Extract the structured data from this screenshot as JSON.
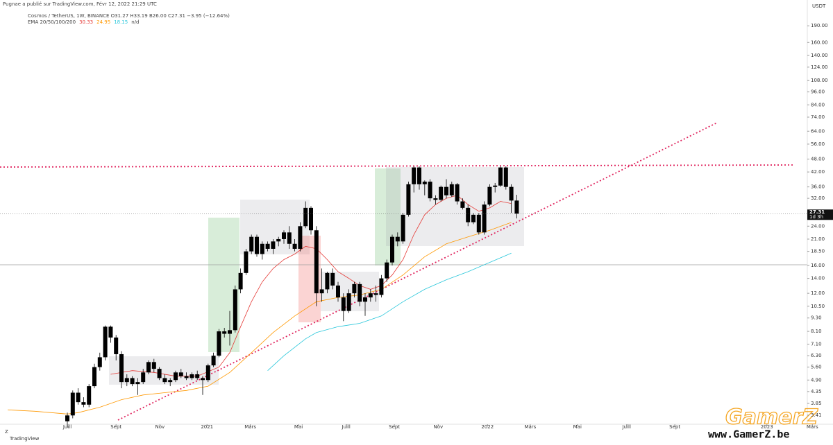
{
  "published": "Pugnae a publié sur TradingView.com, Févr 12, 2022 21:29 UTC",
  "symbol_line": "Cosmos / TetherUS, 1W, BINANCE  O31.27  H33.19  B26.00  C27.31  −3.95 (−12.64%)",
  "indicator_label": "EMA 20/50/100/200",
  "indicator_readout": [
    {
      "label": "30.33",
      "color": "#e53935"
    },
    {
      "label": "24.95",
      "color": "#ff9800"
    },
    {
      "label": "18.15",
      "color": "#26c6da"
    },
    {
      "label": "n/d",
      "color": "#444444"
    }
  ],
  "watermark": {
    "title": "GamerZ",
    "url": "www.GamerZ.be"
  },
  "footer": "TradingView",
  "chart_data": {
    "type": "candlestick",
    "unit": "USDT",
    "log_scale": true,
    "color": "#000000",
    "ylim": [
      3.15,
      203
    ],
    "yticks": [
      {
        "value": 190,
        "label": "190.00"
      },
      {
        "value": 160,
        "label": "160.00"
      },
      {
        "value": 140,
        "label": "140.00"
      },
      {
        "value": 124,
        "label": "124.00"
      },
      {
        "value": 108,
        "label": "108.00"
      },
      {
        "value": 96,
        "label": "96.00"
      },
      {
        "value": 84,
        "label": "84.00"
      },
      {
        "value": 74,
        "label": "74.00"
      },
      {
        "value": 64,
        "label": "64.00"
      },
      {
        "value": 56,
        "label": "56.00"
      },
      {
        "value": 48,
        "label": "48.00"
      },
      {
        "value": 42,
        "label": "42.00"
      },
      {
        "value": 36,
        "label": "36.00"
      },
      {
        "value": 32,
        "label": "32.00"
      },
      {
        "value": 24,
        "label": "24.00"
      },
      {
        "value": 21,
        "label": "21.00"
      },
      {
        "value": 18.5,
        "label": "18.50"
      },
      {
        "value": 16,
        "label": "16.00"
      },
      {
        "value": 14,
        "label": "14.00"
      },
      {
        "value": 12,
        "label": "12.00"
      },
      {
        "value": 10.5,
        "label": "10.50"
      },
      {
        "value": 9.3,
        "label": "9.30"
      },
      {
        "value": 8.1,
        "label": "8.10"
      },
      {
        "value": 7.1,
        "label": "7.10"
      },
      {
        "value": 6.3,
        "label": "6.30"
      },
      {
        "value": 5.6,
        "label": "5.60"
      },
      {
        "value": 4.9,
        "label": "4.90"
      },
      {
        "value": 4.35,
        "label": "4.35"
      },
      {
        "value": 3.85,
        "label": "3.85"
      },
      {
        "value": 3.41,
        "label": "3.41"
      }
    ],
    "xticks": [
      {
        "value": 0,
        "label": "Juill"
      },
      {
        "value": 9,
        "label": "Sept"
      },
      {
        "value": 17.1,
        "label": "Nov"
      },
      {
        "value": 25.8,
        "label": "2021"
      },
      {
        "value": 33.8,
        "label": "Mars"
      },
      {
        "value": 42.7,
        "label": "Mai"
      },
      {
        "value": 51.5,
        "label": "Juill"
      },
      {
        "value": 60.4,
        "label": "Sept"
      },
      {
        "value": 68.5,
        "label": "Nov"
      },
      {
        "value": 77.6,
        "label": "2022"
      },
      {
        "value": 85.5,
        "label": "Mars"
      },
      {
        "value": 94.2,
        "label": "Mai"
      },
      {
        "value": 103.3,
        "label": "Juill"
      },
      {
        "value": 112.2,
        "label": "Sept"
      },
      {
        "value": 129.2,
        "label": "2023"
      },
      {
        "value": 137.6,
        "label": "Mars"
      }
    ],
    "last_price": 27.31,
    "last_price_label": "27.31",
    "countdown": "1d 3h",
    "open": [
      3.2,
      3.4,
      4.3,
      3.9,
      3.8,
      4.6,
      5.6,
      6.2,
      8.5,
      7.6,
      6.4,
      4.8,
      5.0,
      4.7,
      4.8,
      5.3,
      5.9,
      5.5,
      5.0,
      4.8,
      4.9,
      5.3,
      5.1,
      5.0,
      5.2,
      5.0,
      4.9,
      5.7,
      6.3,
      8.1,
      7.9,
      8.2,
      12.5,
      14.8,
      18.5,
      21.5,
      18.0,
      20.0,
      19.0,
      20.5,
      21.0,
      22.5,
      20.0,
      19.0,
      24.0,
      29.0,
      23.0,
      12.0,
      12.5,
      14.8,
      13.0,
      11.5,
      10.0,
      12.0,
      13.2,
      11.0,
      11.5,
      12.0,
      11.8,
      14.0,
      16.5,
      21.5,
      20.5,
      27.0,
      37.0,
      44.0,
      37.0,
      38.0,
      32.0,
      31.5,
      36.0,
      33.0,
      37.0,
      31.0,
      29.0,
      25.0,
      27.0,
      22.5,
      30.0,
      36.0,
      36.5,
      44.0,
      36.0,
      31.27
    ],
    "high": [
      3.5,
      4.4,
      4.5,
      4.1,
      4.7,
      5.8,
      6.5,
      8.6,
      8.6,
      7.8,
      6.6,
      5.2,
      5.1,
      5.0,
      5.5,
      6.0,
      6.1,
      5.6,
      5.2,
      5.0,
      5.4,
      5.5,
      5.3,
      5.3,
      5.4,
      5.1,
      5.8,
      6.5,
      8.3,
      8.4,
      10.0,
      13.0,
      15.5,
      19.0,
      22.0,
      22.0,
      20.5,
      20.5,
      21.0,
      21.5,
      23.0,
      24.0,
      21.0,
      25.0,
      31.0,
      29.5,
      24.0,
      15.5,
      15.0,
      15.5,
      13.5,
      12.0,
      12.5,
      13.5,
      13.5,
      12.0,
      12.5,
      13.0,
      14.5,
      17.0,
      22.0,
      22.5,
      27.5,
      38.0,
      44.5,
      44.5,
      38.5,
      39.0,
      33.0,
      36.5,
      39.0,
      38.0,
      37.5,
      32.0,
      30.0,
      27.5,
      27.5,
      31.0,
      37.0,
      37.5,
      44.5,
      44.5,
      37.0,
      33.19
    ],
    "low": [
      3.0,
      3.3,
      3.8,
      3.7,
      3.7,
      4.5,
      5.4,
      6.0,
      7.2,
      6.0,
      4.5,
      4.6,
      4.6,
      4.2,
      4.7,
      5.2,
      5.3,
      4.9,
      4.7,
      4.6,
      4.8,
      5.0,
      4.9,
      4.9,
      4.9,
      4.2,
      4.8,
      5.6,
      6.2,
      7.6,
      7.0,
      8.0,
      12.0,
      14.5,
      18.0,
      17.5,
      17.0,
      18.5,
      18.0,
      19.5,
      20.0,
      19.0,
      18.5,
      18.5,
      23.5,
      22.0,
      10.5,
      11.0,
      12.0,
      12.5,
      11.0,
      9.0,
      9.8,
      11.5,
      10.5,
      9.5,
      11.0,
      11.0,
      11.5,
      13.5,
      16.0,
      19.5,
      20.0,
      26.5,
      34.0,
      35.0,
      33.0,
      31.0,
      30.0,
      31.0,
      32.0,
      32.5,
      30.0,
      28.5,
      24.0,
      24.5,
      22.0,
      22.0,
      29.5,
      34.0,
      36.0,
      35.0,
      27.5,
      26.0
    ],
    "close": [
      3.4,
      4.3,
      3.9,
      3.8,
      4.6,
      5.6,
      6.2,
      8.5,
      7.6,
      6.4,
      4.8,
      5.0,
      4.7,
      4.8,
      5.3,
      5.9,
      5.5,
      5.0,
      4.8,
      4.9,
      5.3,
      5.1,
      5.0,
      5.2,
      5.0,
      4.9,
      5.7,
      6.3,
      8.1,
      7.9,
      8.2,
      12.5,
      14.8,
      18.5,
      21.5,
      18.0,
      20.0,
      19.0,
      20.5,
      21.0,
      22.5,
      20.0,
      19.0,
      24.0,
      29.0,
      23.0,
      12.0,
      12.5,
      14.8,
      13.0,
      11.5,
      10.0,
      12.0,
      13.2,
      11.0,
      11.5,
      12.0,
      11.8,
      14.0,
      16.5,
      21.5,
      20.5,
      27.0,
      37.0,
      44.0,
      37.0,
      38.0,
      32.0,
      31.5,
      36.0,
      33.0,
      37.0,
      31.0,
      29.0,
      25.0,
      27.0,
      22.5,
      30.0,
      36.0,
      36.5,
      44.0,
      36.0,
      31.27,
      27.31
    ],
    "series": [
      {
        "color": "#e53935",
        "x": [
          8,
          12,
          16,
          20,
          24,
          28,
          30,
          32,
          34,
          36,
          38,
          40,
          42,
          44,
          46,
          48,
          50,
          52,
          54,
          56,
          58,
          60,
          62,
          64,
          66,
          68,
          70,
          72,
          74,
          76,
          78,
          80,
          82
        ],
        "values": [
          5.2,
          5.4,
          5.3,
          5.1,
          5.1,
          5.6,
          6.5,
          8.5,
          11,
          13.5,
          15.5,
          17,
          18,
          19.5,
          19,
          17,
          15,
          14,
          13,
          12.5,
          13,
          14.5,
          17,
          22,
          27,
          30,
          32,
          33,
          30,
          28,
          29,
          31,
          30.33
        ]
      },
      {
        "color": "#ff9800",
        "x": [
          -11,
          -6,
          0,
          2,
          6,
          10,
          14,
          18,
          22,
          26,
          30,
          34,
          38,
          42,
          46,
          50,
          54,
          58,
          62,
          66,
          70,
          74,
          78,
          82
        ],
        "values": [
          3.6,
          3.55,
          3.45,
          3.5,
          3.7,
          4.0,
          4.2,
          4.3,
          4.4,
          4.6,
          5.3,
          6.5,
          8.0,
          9.5,
          11,
          11.5,
          11.8,
          12.5,
          14.5,
          17.5,
          20,
          21.5,
          23,
          24.95
        ]
      },
      {
        "color": "#26c6da",
        "x": [
          37,
          40,
          44,
          46,
          50,
          54,
          58,
          62,
          66,
          70,
          74,
          78,
          82
        ],
        "values": [
          5.4,
          6.3,
          7.5,
          8.0,
          8.5,
          8.8,
          9.5,
          11,
          12.5,
          13.8,
          15,
          16.5,
          18.15
        ]
      }
    ]
  }
}
